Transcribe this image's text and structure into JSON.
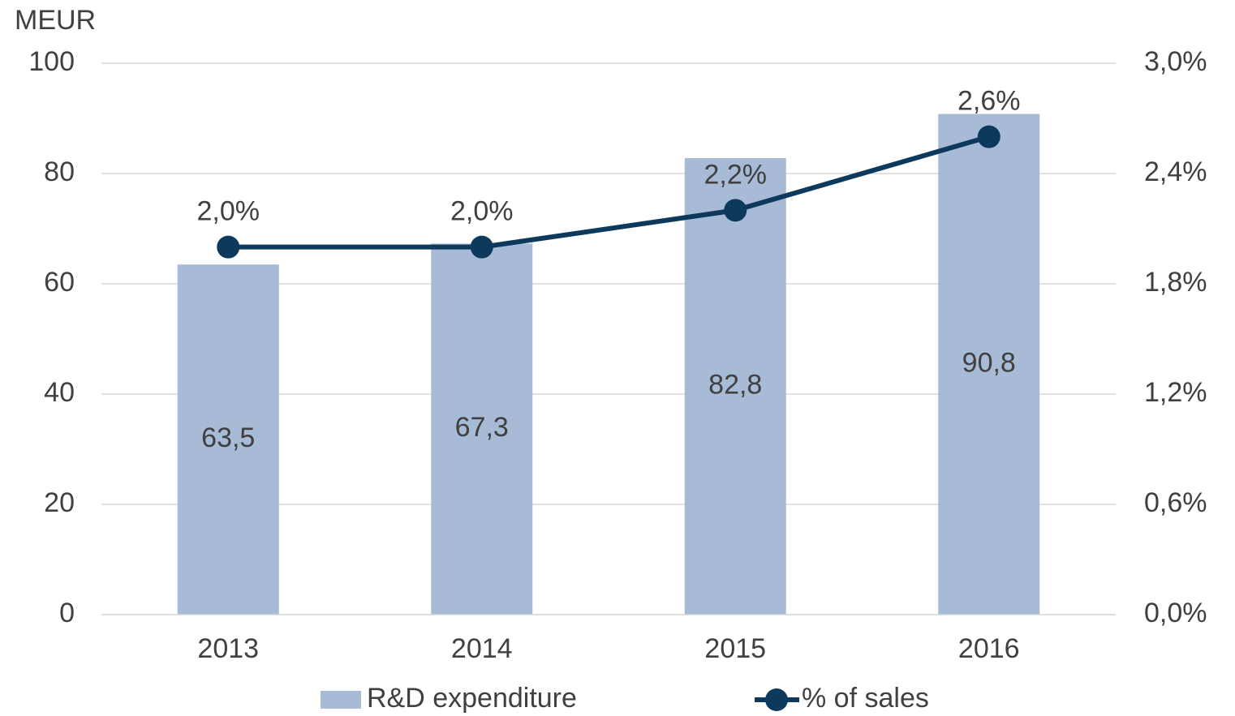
{
  "chart_data": {
    "type": "bar",
    "y_label": "MEUR",
    "categories": [
      "2013",
      "2014",
      "2015",
      "2016"
    ],
    "series": [
      {
        "name": "R&D expenditure",
        "type": "bar",
        "color": "#a7bbd6",
        "values": [
          63.5,
          67.3,
          82.8,
          90.8
        ],
        "value_labels": [
          "63,5",
          "67,3",
          "82,8",
          "90,8"
        ]
      },
      {
        "name": "% of sales",
        "type": "line",
        "axis": "y2",
        "color": "#0d3a5c",
        "values": [
          2.0,
          2.0,
          2.2,
          2.6
        ],
        "value_labels": [
          "2,0%",
          "2,0%",
          "2,2%",
          "2,6%"
        ]
      }
    ],
    "ylim": [
      0,
      100
    ],
    "yticks": [
      0,
      20,
      40,
      60,
      80,
      100
    ],
    "y2lim": [
      0,
      3.0
    ],
    "y2ticks": [
      {
        "value": 0,
        "label": "0,0%"
      },
      {
        "value": 0.6,
        "label": "0,6%"
      },
      {
        "value": 1.2,
        "label": "1,2%"
      },
      {
        "value": 1.8,
        "label": "1,8%"
      },
      {
        "value": 2.4,
        "label": "2,4%"
      },
      {
        "value": 3.0,
        "label": "3,0%"
      }
    ],
    "grid": true,
    "legend": "bottom"
  }
}
